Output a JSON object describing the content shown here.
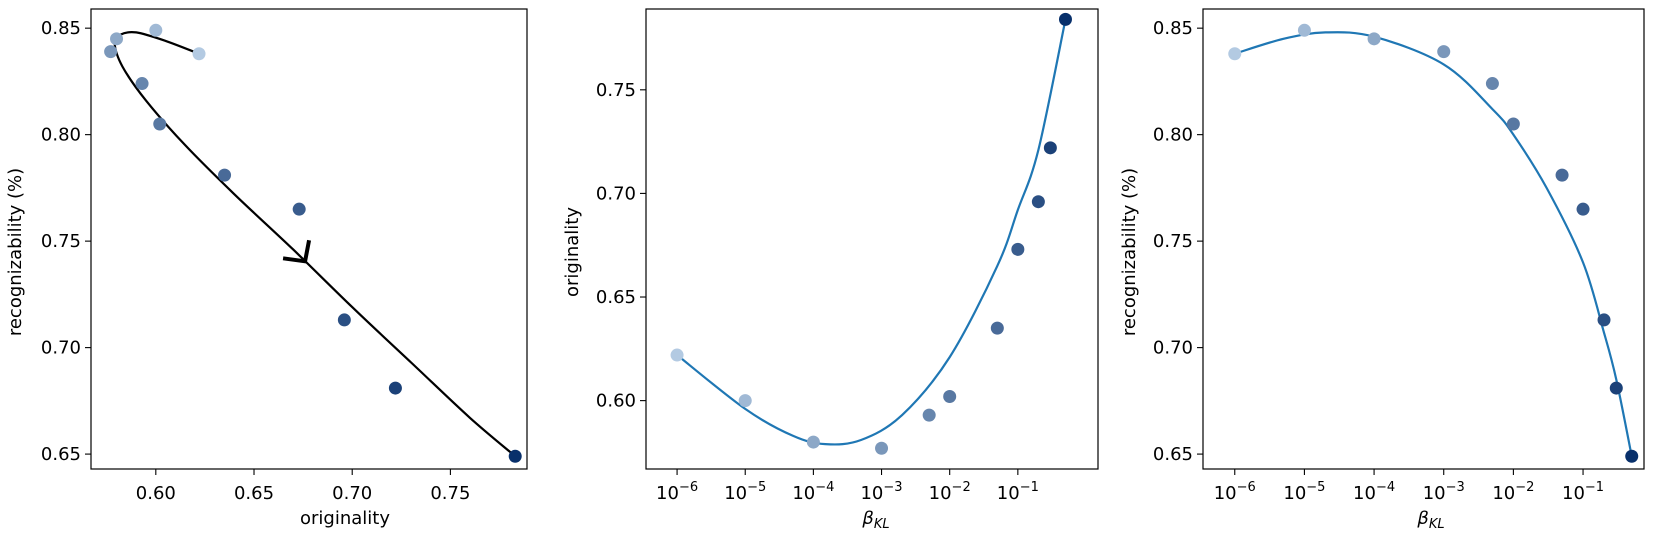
{
  "chart_data": [
    {
      "type": "scatter",
      "xlabel": "originality",
      "ylabel": "recognizability (%)",
      "xlim": [
        0.567,
        0.789
      ],
      "ylim": [
        0.643,
        0.859
      ],
      "xticks": [
        0.6,
        0.65,
        0.7,
        0.75
      ],
      "xtick_labels": [
        "0.60",
        "0.65",
        "0.70",
        "0.75"
      ],
      "yticks": [
        0.65,
        0.7,
        0.75,
        0.8,
        0.85
      ],
      "ytick_labels": [
        "0.65",
        "0.70",
        "0.75",
        "0.80",
        "0.85"
      ],
      "points": [
        {
          "x": 0.622,
          "y": 0.838,
          "shade": 0.1
        },
        {
          "x": 0.6,
          "y": 0.849,
          "shade": 0.2
        },
        {
          "x": 0.58,
          "y": 0.845,
          "shade": 0.3
        },
        {
          "x": 0.577,
          "y": 0.839,
          "shade": 0.4
        },
        {
          "x": 0.593,
          "y": 0.824,
          "shade": 0.5
        },
        {
          "x": 0.602,
          "y": 0.805,
          "shade": 0.58
        },
        {
          "x": 0.635,
          "y": 0.781,
          "shade": 0.66
        },
        {
          "x": 0.673,
          "y": 0.765,
          "shade": 0.74
        },
        {
          "x": 0.696,
          "y": 0.713,
          "shade": 0.82
        },
        {
          "x": 0.722,
          "y": 0.681,
          "shade": 0.9
        },
        {
          "x": 0.783,
          "y": 0.649,
          "shade": 1.0
        }
      ],
      "fit_curve": {
        "color": "#000000",
        "points": [
          [
            0.622,
            0.838
          ],
          [
            0.605,
            0.844
          ],
          [
            0.59,
            0.848
          ],
          [
            0.582,
            0.847
          ],
          [
            0.579,
            0.843
          ],
          [
            0.583,
            0.832
          ],
          [
            0.595,
            0.816
          ],
          [
            0.615,
            0.795
          ],
          [
            0.64,
            0.772
          ],
          [
            0.67,
            0.746
          ],
          [
            0.7,
            0.719
          ],
          [
            0.73,
            0.693
          ],
          [
            0.76,
            0.667
          ],
          [
            0.783,
            0.649
          ]
        ]
      },
      "arrow": {
        "x": 0.676,
        "y": 0.741,
        "direction": "down-right",
        "color": "#000000"
      }
    },
    {
      "type": "scatter",
      "xlabel": "β_KL",
      "ylabel": "originality",
      "xscale": "log",
      "xlim": [
        3.5e-07,
        1.5
      ],
      "ylim": [
        0.567,
        0.789
      ],
      "xticks": [
        1e-06,
        1e-05,
        0.0001,
        0.001,
        0.01,
        0.1
      ],
      "xtick_labels": [
        "10",
        "10",
        "10",
        "10",
        "10",
        "10"
      ],
      "xtick_exponents": [
        "−6",
        "−5",
        "−4",
        "−3",
        "−2",
        "−1"
      ],
      "yticks": [
        0.6,
        0.65,
        0.7,
        0.75
      ],
      "ytick_labels": [
        "0.60",
        "0.65",
        "0.70",
        "0.75"
      ],
      "points": [
        {
          "x": 1e-06,
          "y": 0.622,
          "shade": 0.1
        },
        {
          "x": 1e-05,
          "y": 0.6,
          "shade": 0.2
        },
        {
          "x": 0.0001,
          "y": 0.58,
          "shade": 0.3
        },
        {
          "x": 0.001,
          "y": 0.577,
          "shade": 0.4
        },
        {
          "x": 0.005,
          "y": 0.593,
          "shade": 0.5
        },
        {
          "x": 0.01,
          "y": 0.602,
          "shade": 0.58
        },
        {
          "x": 0.05,
          "y": 0.635,
          "shade": 0.66
        },
        {
          "x": 0.1,
          "y": 0.673,
          "shade": 0.74
        },
        {
          "x": 0.2,
          "y": 0.696,
          "shade": 0.82
        },
        {
          "x": 0.3,
          "y": 0.722,
          "shade": 0.9
        },
        {
          "x": 0.5,
          "y": 0.784,
          "shade": 1.0
        }
      ],
      "fit_curve": {
        "color": "#1f77b4",
        "points": [
          [
            1e-06,
            0.622
          ],
          [
            1e-05,
            0.596
          ],
          [
            5e-05,
            0.583
          ],
          [
            0.00015,
            0.579
          ],
          [
            0.0005,
            0.581
          ],
          [
            0.002,
            0.593
          ],
          [
            0.01,
            0.621
          ],
          [
            0.05,
            0.665
          ],
          [
            0.1,
            0.692
          ],
          [
            0.2,
            0.721
          ],
          [
            0.5,
            0.784
          ]
        ]
      }
    },
    {
      "type": "scatter",
      "xlabel": "β_KL",
      "ylabel": "recognizability (%)",
      "xscale": "log",
      "xlim": [
        3.5e-07,
        0.75
      ],
      "ylim": [
        0.643,
        0.859
      ],
      "xticks": [
        1e-06,
        1e-05,
        0.0001,
        0.001,
        0.01,
        0.1
      ],
      "xtick_labels": [
        "10",
        "10",
        "10",
        "10",
        "10",
        "10"
      ],
      "xtick_exponents": [
        "−6",
        "−5",
        "−4",
        "−3",
        "−2",
        "−1"
      ],
      "yticks": [
        0.65,
        0.7,
        0.75,
        0.8,
        0.85
      ],
      "ytick_labels": [
        "0.65",
        "0.70",
        "0.75",
        "0.80",
        "0.85"
      ],
      "points": [
        {
          "x": 1e-06,
          "y": 0.838,
          "shade": 0.1
        },
        {
          "x": 1e-05,
          "y": 0.849,
          "shade": 0.2
        },
        {
          "x": 0.0001,
          "y": 0.845,
          "shade": 0.3
        },
        {
          "x": 0.001,
          "y": 0.839,
          "shade": 0.4
        },
        {
          "x": 0.005,
          "y": 0.824,
          "shade": 0.5
        },
        {
          "x": 0.01,
          "y": 0.805,
          "shade": 0.58
        },
        {
          "x": 0.05,
          "y": 0.781,
          "shade": 0.66
        },
        {
          "x": 0.1,
          "y": 0.765,
          "shade": 0.74
        },
        {
          "x": 0.2,
          "y": 0.713,
          "shade": 0.82
        },
        {
          "x": 0.3,
          "y": 0.681,
          "shade": 0.9
        },
        {
          "x": 0.5,
          "y": 0.649,
          "shade": 1.0
        }
      ],
      "fit_curve": {
        "color": "#1f77b4",
        "points": [
          [
            1e-06,
            0.838
          ],
          [
            5e-06,
            0.845
          ],
          [
            2e-05,
            0.848
          ],
          [
            0.0001,
            0.846
          ],
          [
            0.001,
            0.833
          ],
          [
            0.005,
            0.812
          ],
          [
            0.01,
            0.8
          ],
          [
            0.03,
            0.775
          ],
          [
            0.1,
            0.74
          ],
          [
            0.2,
            0.707
          ],
          [
            0.3,
            0.685
          ],
          [
            0.5,
            0.649
          ]
        ]
      }
    }
  ]
}
